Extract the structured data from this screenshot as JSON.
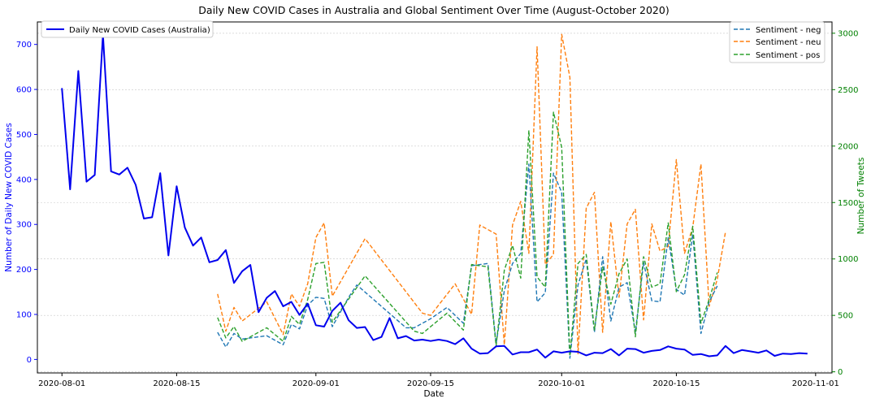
{
  "chart_data": {
    "type": "line",
    "title": "Daily New COVID Cases in Australia and Global Sentiment Over Time (August-October 2020)",
    "xlabel": "Date",
    "ylabel_left": "Number of Daily New COVID Cases",
    "ylabel_right": "Number of Tweets",
    "x_ticks": [
      "2020-08-01",
      "2020-08-15",
      "2020-09-01",
      "2020-09-15",
      "2020-10-01",
      "2020-10-15",
      "2020-11-01"
    ],
    "xlim": [
      "2020-07-29",
      "2020-11-03"
    ],
    "ylim_left": [
      -30,
      750
    ],
    "yticks_left": [
      0,
      100,
      200,
      300,
      400,
      500,
      600,
      700
    ],
    "ylim_right": [
      -10,
      3100
    ],
    "yticks_right": [
      0,
      500,
      1000,
      1500,
      2000,
      2500,
      3000
    ],
    "grid": "horizontal dotted",
    "legend_left": {
      "placement": "top-left",
      "entries": [
        "Daily New COVID Cases (Australia)"
      ]
    },
    "legend_right": {
      "placement": "top-right",
      "entries": [
        "Sentiment - neg",
        "Sentiment - neu",
        "Sentiment - pos"
      ]
    },
    "colors": {
      "cases": "#0000ee",
      "neg": "#1f77b4",
      "neu": "#ff7f0e",
      "pos": "#2ca02c",
      "right_axis": "#008000",
      "left_axis": "#0000ff"
    },
    "series": [
      {
        "name": "Daily New COVID Cases (Australia)",
        "axis": "left",
        "start": "2020-08-01",
        "values": [
          603,
          378,
          641,
          395,
          410,
          722,
          418,
          411,
          426,
          388,
          313,
          316,
          414,
          231,
          385,
          293,
          253,
          271,
          216,
          221,
          243,
          170,
          196,
          210,
          105,
          137,
          152,
          118,
          128,
          99,
          124,
          76,
          73,
          108,
          126,
          87,
          70,
          72,
          43,
          50,
          92,
          47,
          52,
          42,
          44,
          41,
          44,
          41,
          34,
          47,
          24,
          13,
          14,
          29,
          30,
          11,
          16,
          16,
          22,
          4,
          18,
          15,
          18,
          17,
          9,
          15,
          14,
          23,
          9,
          24,
          23,
          15,
          19,
          21,
          29,
          24,
          22,
          10,
          12,
          7,
          9,
          30,
          14,
          21,
          18,
          15,
          20,
          8,
          13,
          12,
          14,
          13
        ]
      },
      {
        "name": "Sentiment - neg",
        "axis": "right",
        "points": [
          [
            "2020-08-20",
            350
          ],
          [
            "2020-08-21",
            220
          ],
          [
            "2020-08-22",
            340
          ],
          [
            "2020-08-23",
            290
          ],
          [
            "2020-08-26",
            320
          ],
          [
            "2020-08-28",
            240
          ],
          [
            "2020-08-29",
            420
          ],
          [
            "2020-08-30",
            380
          ],
          [
            "2020-08-31",
            590
          ],
          [
            "2020-09-01",
            660
          ],
          [
            "2020-09-02",
            650
          ],
          [
            "2020-09-03",
            400
          ],
          [
            "2020-09-05",
            660
          ],
          [
            "2020-09-06",
            770
          ],
          [
            "2020-09-12",
            390
          ],
          [
            "2020-09-13",
            390
          ],
          [
            "2020-09-15",
            470
          ],
          [
            "2020-09-17",
            570
          ],
          [
            "2020-09-19",
            430
          ],
          [
            "2020-09-20",
            940
          ],
          [
            "2020-09-22",
            960
          ],
          [
            "2020-09-23",
            250
          ],
          [
            "2020-09-24",
            720
          ],
          [
            "2020-09-25",
            960
          ],
          [
            "2020-09-26",
            1050
          ],
          [
            "2020-09-27",
            1840
          ],
          [
            "2020-09-28",
            620
          ],
          [
            "2020-09-29",
            700
          ],
          [
            "2020-09-30",
            1760
          ],
          [
            "2020-10-01",
            1590
          ],
          [
            "2020-10-02",
            120
          ],
          [
            "2020-10-03",
            770
          ],
          [
            "2020-10-04",
            1000
          ],
          [
            "2020-10-05",
            350
          ],
          [
            "2020-10-06",
            1020
          ],
          [
            "2020-10-07",
            450
          ],
          [
            "2020-10-08",
            750
          ],
          [
            "2020-10-09",
            790
          ],
          [
            "2020-10-10",
            350
          ],
          [
            "2020-10-11",
            970
          ],
          [
            "2020-10-12",
            630
          ],
          [
            "2020-10-13",
            620
          ],
          [
            "2020-10-14",
            1190
          ],
          [
            "2020-10-15",
            730
          ],
          [
            "2020-10-16",
            680
          ],
          [
            "2020-10-17",
            1220
          ],
          [
            "2020-10-18",
            340
          ],
          [
            "2020-10-19",
            620
          ],
          [
            "2020-10-20",
            760
          ]
        ]
      },
      {
        "name": "Sentiment - neu",
        "axis": "right",
        "points": [
          [
            "2020-08-20",
            690
          ],
          [
            "2020-08-21",
            360
          ],
          [
            "2020-08-22",
            570
          ],
          [
            "2020-08-23",
            450
          ],
          [
            "2020-08-26",
            620
          ],
          [
            "2020-08-28",
            330
          ],
          [
            "2020-08-29",
            690
          ],
          [
            "2020-08-30",
            580
          ],
          [
            "2020-08-31",
            780
          ],
          [
            "2020-09-01",
            1190
          ],
          [
            "2020-09-02",
            1320
          ],
          [
            "2020-09-03",
            670
          ],
          [
            "2020-09-07",
            1180
          ],
          [
            "2020-09-14",
            520
          ],
          [
            "2020-09-15",
            500
          ],
          [
            "2020-09-18",
            780
          ],
          [
            "2020-09-20",
            510
          ],
          [
            "2020-09-21",
            1300
          ],
          [
            "2020-09-23",
            1220
          ],
          [
            "2020-09-24",
            240
          ],
          [
            "2020-09-25",
            1300
          ],
          [
            "2020-09-26",
            1510
          ],
          [
            "2020-09-27",
            1050
          ],
          [
            "2020-09-28",
            2880
          ],
          [
            "2020-09-29",
            950
          ],
          [
            "2020-09-30",
            1040
          ],
          [
            "2020-10-01",
            2990
          ],
          [
            "2020-10-02",
            2610
          ],
          [
            "2020-10-03",
            160
          ],
          [
            "2020-10-04",
            1450
          ],
          [
            "2020-10-05",
            1590
          ],
          [
            "2020-10-06",
            350
          ],
          [
            "2020-10-07",
            1330
          ],
          [
            "2020-10-08",
            660
          ],
          [
            "2020-10-09",
            1310
          ],
          [
            "2020-10-10",
            1440
          ],
          [
            "2020-10-11",
            460
          ],
          [
            "2020-10-12",
            1310
          ],
          [
            "2020-10-13",
            1070
          ],
          [
            "2020-10-14",
            1110
          ],
          [
            "2020-10-15",
            1880
          ],
          [
            "2020-10-16",
            1050
          ],
          [
            "2020-10-17",
            1280
          ],
          [
            "2020-10-18",
            1840
          ],
          [
            "2020-10-19",
            580
          ],
          [
            "2020-10-20",
            820
          ],
          [
            "2020-10-21",
            1240
          ]
        ]
      },
      {
        "name": "Sentiment - pos",
        "axis": "right",
        "points": [
          [
            "2020-08-20",
            480
          ],
          [
            "2020-08-21",
            300
          ],
          [
            "2020-08-22",
            400
          ],
          [
            "2020-08-23",
            270
          ],
          [
            "2020-08-26",
            390
          ],
          [
            "2020-08-28",
            270
          ],
          [
            "2020-08-29",
            490
          ],
          [
            "2020-08-30",
            420
          ],
          [
            "2020-08-31",
            640
          ],
          [
            "2020-09-01",
            960
          ],
          [
            "2020-09-02",
            970
          ],
          [
            "2020-09-03",
            440
          ],
          [
            "2020-09-07",
            850
          ],
          [
            "2020-09-13",
            360
          ],
          [
            "2020-09-14",
            340
          ],
          [
            "2020-09-17",
            520
          ],
          [
            "2020-09-19",
            370
          ],
          [
            "2020-09-20",
            950
          ],
          [
            "2020-09-22",
            930
          ],
          [
            "2020-09-23",
            230
          ],
          [
            "2020-09-24",
            900
          ],
          [
            "2020-09-25",
            1120
          ],
          [
            "2020-09-26",
            830
          ],
          [
            "2020-09-27",
            2140
          ],
          [
            "2020-09-28",
            840
          ],
          [
            "2020-09-29",
            750
          ],
          [
            "2020-09-30",
            2300
          ],
          [
            "2020-10-01",
            1990
          ],
          [
            "2020-10-02",
            140
          ],
          [
            "2020-10-03",
            960
          ],
          [
            "2020-10-04",
            1040
          ],
          [
            "2020-10-05",
            370
          ],
          [
            "2020-10-06",
            930
          ],
          [
            "2020-10-07",
            600
          ],
          [
            "2020-10-08",
            870
          ],
          [
            "2020-10-09",
            1000
          ],
          [
            "2020-10-10",
            310
          ],
          [
            "2020-10-11",
            1020
          ],
          [
            "2020-10-12",
            750
          ],
          [
            "2020-10-13",
            780
          ],
          [
            "2020-10-14",
            1320
          ],
          [
            "2020-10-15",
            710
          ],
          [
            "2020-10-16",
            860
          ],
          [
            "2020-10-17",
            1290
          ],
          [
            "2020-10-18",
            430
          ],
          [
            "2020-10-19",
            640
          ],
          [
            "2020-10-20",
            880
          ]
        ]
      }
    ]
  }
}
